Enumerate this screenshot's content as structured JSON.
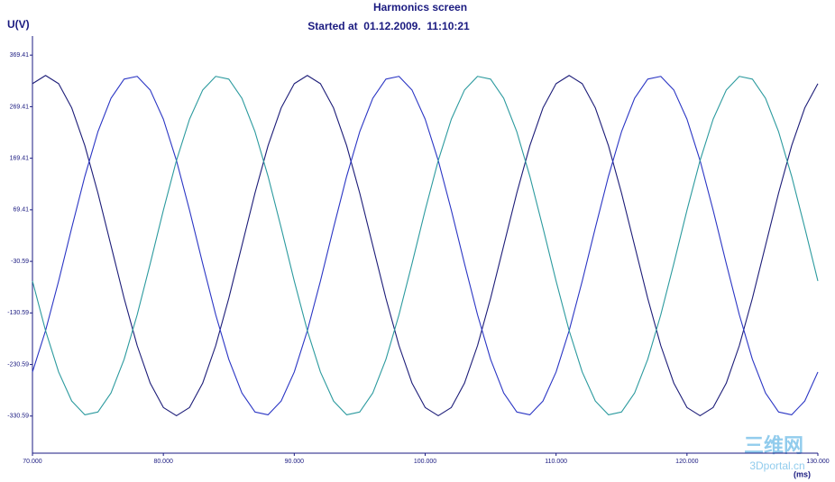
{
  "chart_data": {
    "type": "line",
    "title": "Harmonics screen",
    "subtitle": "Started at  01.12.2009.  11:10:21",
    "y_label": "U(V)",
    "x_label": "(ms)",
    "x": [
      70,
      71,
      72,
      73,
      74,
      75,
      76,
      77,
      78,
      79,
      80,
      81,
      82,
      83,
      84,
      85,
      86,
      87,
      88,
      89,
      90,
      91,
      92,
      93,
      94,
      95,
      96,
      97,
      98,
      99,
      100,
      101,
      102,
      103,
      104,
      105,
      106,
      107,
      108,
      109,
      110,
      111,
      112,
      113,
      114,
      115,
      116,
      117,
      118,
      119,
      120,
      121,
      122,
      123,
      124,
      125,
      126,
      127,
      128,
      129,
      130
    ],
    "series": [
      {
        "color": "#1c1c78",
        "values": [
          314,
          330,
          314,
          267,
          194,
          102,
          0,
          -102,
          -194,
          -267,
          -314,
          -330,
          -314,
          -267,
          -194,
          -102,
          0,
          102,
          194,
          267,
          314,
          330,
          314,
          267,
          194,
          102,
          0,
          -102,
          -194,
          -267,
          -314,
          -330,
          -314,
          -267,
          -194,
          -102,
          0,
          102,
          194,
          267,
          314,
          330,
          314,
          267,
          194,
          102,
          0,
          -102,
          -194,
          -267,
          -314,
          -330,
          -314,
          -267,
          -194,
          -102,
          0,
          102,
          194,
          267,
          314
        ]
      },
      {
        "color": "#2a35c4",
        "values": [
          -245.2,
          -165,
          -68.6,
          34.5,
          134.2,
          220.8,
          285.8,
          322.8,
          328.2,
          301.5,
          245.2,
          165,
          68.6,
          -34.5,
          -134.2,
          -220.8,
          -285.8,
          -322.8,
          -328.2,
          -301.5,
          -245.2,
          -165,
          -68.6,
          34.5,
          134.2,
          220.8,
          285.8,
          322.8,
          328.2,
          301.5,
          245.2,
          165,
          68.6,
          -34.5,
          -134.2,
          -220.8,
          -285.8,
          -322.8,
          -328.2,
          -301.5,
          -245.2,
          -165,
          -68.6,
          34.5,
          134.2,
          220.8,
          285.8,
          322.8,
          328.2,
          301.5,
          245.2,
          165,
          68.6,
          -34.5,
          -134.2,
          -220.8,
          -285.8,
          -322.8,
          -328.2,
          -301.5,
          -245.2
        ]
      },
      {
        "color": "#2b9a9e",
        "values": [
          -68.6,
          -165,
          -245.2,
          -301.5,
          -328.2,
          -322.8,
          -285.8,
          -220.8,
          -134.2,
          -34.5,
          68.6,
          165,
          245.2,
          301.5,
          328.2,
          322.8,
          285.8,
          220.8,
          134.2,
          34.5,
          -68.6,
          -165,
          -245.2,
          -301.5,
          -328.2,
          -322.8,
          -285.8,
          -220.8,
          -134.2,
          -34.5,
          68.6,
          165,
          245.2,
          301.5,
          328.2,
          322.8,
          285.8,
          220.8,
          134.2,
          34.5,
          -68.6,
          -165,
          -245.2,
          -301.5,
          -328.2,
          -322.8,
          -285.8,
          -220.8,
          -134.2,
          -34.5,
          68.6,
          165,
          245.2,
          301.5,
          328.2,
          322.8,
          285.8,
          220.8,
          134.2,
          34.5,
          -68.6
        ]
      }
    ],
    "xlim": [
      70,
      130
    ],
    "xticks": [
      {
        "value": 70,
        "label": "70.000"
      },
      {
        "value": 80,
        "label": "80.000"
      },
      {
        "value": 90,
        "label": "90.000"
      },
      {
        "value": 100,
        "label": "100.000"
      },
      {
        "value": 110,
        "label": "110.000"
      },
      {
        "value": 120,
        "label": "120.000"
      },
      {
        "value": 130,
        "label": "130.000"
      }
    ],
    "ylim": [
      -402.59,
      406.41
    ],
    "yticks": [
      369.41,
      269.41,
      169.41,
      69.41,
      -30.59,
      -130.59,
      -230.59,
      -330.59
    ],
    "grid": false
  },
  "watermark": {
    "logo": "三维网",
    "site": "3Dportal.cn"
  }
}
